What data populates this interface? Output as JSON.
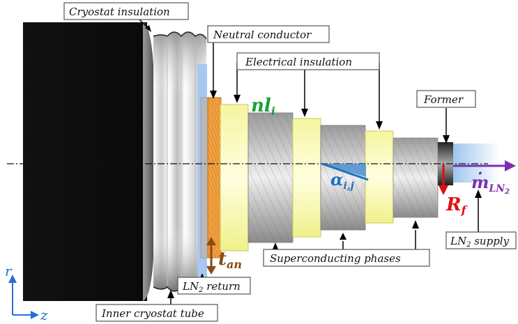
{
  "labels": {
    "cryostat_insulation": "Cryostat insulation",
    "neutral_conductor": "Neutral conductor",
    "electrical_insulation": "Electrical insulation",
    "former": "Former",
    "ln2_supply_main": "LN",
    "ln2_supply_sub": "2",
    "ln2_supply_tail": " supply",
    "superconducting_phases": "Superconducting phases",
    "ln2_return_main": "LN",
    "ln2_return_sub": "2",
    "ln2_return_tail": " return",
    "inner_cryostat_tube": "Inner cryostat tube"
  },
  "symbols": {
    "nl_main": "nl",
    "nl_sub": "i",
    "alpha_main": "α",
    "alpha_sub": "i,j",
    "m_main": "m",
    "m_dot": "·",
    "m_sub": "LN",
    "m_sub2": "2",
    "rf_main": "R",
    "rf_sub": "f",
    "tan_main": "t",
    "tan_sub": "an"
  },
  "axes": {
    "r": "r",
    "z": "z"
  },
  "colors": {
    "nl": "#1a9e3a",
    "alpha": "#1f6fc0",
    "m": "#7a2fb0",
    "rf": "#e01010",
    "tan": "#8b4a10",
    "axes": "#2a6fd6"
  }
}
